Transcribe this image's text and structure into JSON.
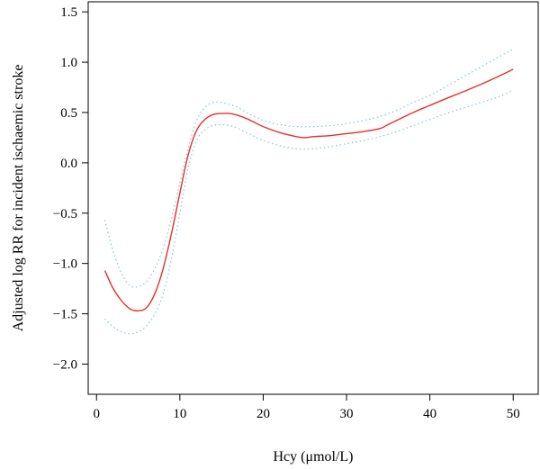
{
  "chart_data": {
    "type": "line",
    "title": "",
    "xlabel": "Hcy (μmol/L)",
    "ylabel": "Adjusted log RR for incident ischaemic stroke",
    "xlim": [
      -1,
      53
    ],
    "ylim": [
      -2.3,
      1.6
    ],
    "x_ticks": [
      0,
      10,
      20,
      30,
      40,
      50
    ],
    "x_tick_labels": [
      "0",
      "10",
      "20",
      "30",
      "40",
      "50"
    ],
    "y_ticks": [
      1.5,
      1.0,
      0.5,
      0.0,
      -0.5,
      -1.0,
      -1.5,
      -2.0
    ],
    "y_tick_labels": [
      "1.5",
      "1.0",
      "0.5",
      "0.0",
      "−0.5",
      "−1.0",
      "−1.5",
      "−2.0"
    ],
    "grid": false,
    "series": [
      {
        "role": "estimate",
        "color": "#e8302a",
        "style": "solid",
        "x": [
          1,
          2,
          3,
          4,
          5,
          6,
          7,
          8,
          9,
          10,
          11,
          12,
          13,
          14,
          15,
          16,
          17,
          18,
          19,
          20,
          22,
          24,
          25,
          26,
          28,
          30,
          32,
          34,
          35,
          38,
          40,
          42,
          45,
          48,
          50
        ],
        "y": [
          -1.07,
          -1.25,
          -1.37,
          -1.45,
          -1.47,
          -1.44,
          -1.3,
          -1.05,
          -0.7,
          -0.3,
          0.08,
          0.32,
          0.43,
          0.48,
          0.49,
          0.49,
          0.47,
          0.44,
          0.4,
          0.36,
          0.3,
          0.26,
          0.25,
          0.26,
          0.27,
          0.29,
          0.31,
          0.34,
          0.38,
          0.5,
          0.57,
          0.64,
          0.74,
          0.85,
          0.93
        ]
      },
      {
        "role": "upper_ci",
        "color": "#7ec8d6",
        "style": "dotted",
        "x": [
          1,
          2,
          3,
          4,
          5,
          6,
          7,
          8,
          9,
          10,
          11,
          12,
          13,
          14,
          15,
          16,
          17,
          18,
          19,
          20,
          22,
          24,
          26,
          28,
          30,
          32,
          34,
          36,
          38,
          40,
          42,
          45,
          48,
          50
        ],
        "y": [
          -0.57,
          -0.88,
          -1.1,
          -1.22,
          -1.23,
          -1.18,
          -1.05,
          -0.85,
          -0.55,
          -0.2,
          0.15,
          0.42,
          0.55,
          0.6,
          0.6,
          0.58,
          0.55,
          0.5,
          0.46,
          0.42,
          0.38,
          0.36,
          0.36,
          0.37,
          0.39,
          0.42,
          0.46,
          0.52,
          0.6,
          0.67,
          0.76,
          0.9,
          1.04,
          1.13
        ]
      },
      {
        "role": "lower_ci",
        "color": "#7ec8d6",
        "style": "dotted",
        "x": [
          1,
          2,
          3,
          4,
          5,
          6,
          7,
          8,
          9,
          10,
          11,
          12,
          13,
          14,
          15,
          16,
          17,
          18,
          19,
          20,
          22,
          24,
          26,
          28,
          30,
          32,
          34,
          36,
          38,
          40,
          42,
          45,
          48,
          50
        ],
        "y": [
          -1.55,
          -1.63,
          -1.68,
          -1.7,
          -1.68,
          -1.62,
          -1.5,
          -1.3,
          -0.95,
          -0.5,
          -0.05,
          0.22,
          0.33,
          0.37,
          0.38,
          0.37,
          0.34,
          0.3,
          0.26,
          0.22,
          0.17,
          0.14,
          0.14,
          0.16,
          0.19,
          0.22,
          0.26,
          0.31,
          0.37,
          0.43,
          0.49,
          0.57,
          0.65,
          0.72
        ]
      }
    ]
  }
}
